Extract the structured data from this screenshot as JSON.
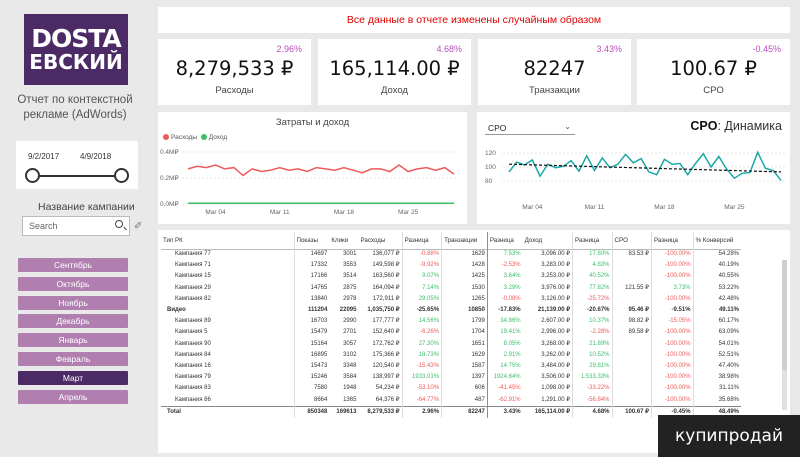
{
  "sidebar": {
    "logo_line1": "DOSTA",
    "logo_line2": "ЕВСКИЙ",
    "report_title": "Отчет по контекстной рекламе (AdWords)",
    "date_from": "9/2/2017",
    "date_to": "4/9/2018",
    "campaign_label": "Название кампании",
    "search_placeholder": "Search",
    "months": [
      "Сентябрь",
      "Октябрь",
      "Ноябрь",
      "Декабрь",
      "Январь",
      "Февраль",
      "Март",
      "Апрель"
    ],
    "selected_month": "Март"
  },
  "banner": "Все данные в отчете изменены случайным образом",
  "kpis": [
    {
      "pct": "2.96%",
      "value": "8,279,533 ₽",
      "label": "Расходы"
    },
    {
      "pct": "4.68%",
      "value": "165,114.00 ₽",
      "label": "Доход"
    },
    {
      "pct": "3.43%",
      "value": "82247",
      "label": "Транзакции"
    },
    {
      "pct": "-0.45%",
      "value": "100.67 ₽",
      "label": "CPO"
    }
  ],
  "chart_data": [
    {
      "type": "line",
      "title": "Затраты и доход",
      "legend": [
        "Расходы",
        "Доход"
      ],
      "colors": {
        "Расходы": "#ee5a5a",
        "Доход": "#3bbf6b"
      },
      "y_ticks": [
        "0.4M₽",
        "0.2M₽",
        "0.0M₽"
      ],
      "ylim": [
        0,
        0.4
      ],
      "x_ticks": [
        "Mar 04",
        "Mar 11",
        "Mar 18",
        "Mar 25"
      ],
      "series": [
        {
          "name": "Расходы",
          "values": [
            0.27,
            0.29,
            0.28,
            0.3,
            0.27,
            0.28,
            0.22,
            0.27,
            0.25,
            0.26,
            0.28,
            0.26,
            0.27,
            0.25,
            0.28,
            0.27,
            0.26,
            0.28,
            0.26,
            0.24,
            0.27,
            0.27,
            0.25,
            0.3,
            0.25,
            0.27,
            0.28,
            0.26,
            0.28,
            0.23
          ]
        },
        {
          "name": "Доход",
          "values": [
            0.006,
            0.006,
            0.006,
            0.006,
            0.006,
            0.006,
            0.006,
            0.006,
            0.006,
            0.006,
            0.006,
            0.006,
            0.006,
            0.006,
            0.006,
            0.006,
            0.006,
            0.006,
            0.006,
            0.006,
            0.006,
            0.006,
            0.006,
            0.006,
            0.006,
            0.006,
            0.006,
            0.006,
            0.006,
            0.006
          ]
        }
      ]
    },
    {
      "type": "line",
      "title": "CPO: Динамика",
      "dropdown": "CPO",
      "colors": {
        "CPO": "#1aa8a8",
        "trend": "#111111"
      },
      "y_ticks": [
        "120",
        "100",
        "80"
      ],
      "ylim": [
        70,
        130
      ],
      "x_ticks": [
        "Mar 04",
        "Mar 11",
        "Mar 18",
        "Mar 25"
      ],
      "series": [
        {
          "name": "CPO",
          "values": [
            93,
            107,
            103,
            110,
            87,
            104,
            99,
            101,
            109,
            94,
            116,
            95,
            113,
            99,
            104,
            118,
            106,
            112,
            93,
            89,
            111,
            104,
            105,
            89,
            105,
            119,
            100,
            115,
            97,
            84,
            91,
            92,
            121,
            98,
            95,
            81
          ]
        },
        {
          "name": "trend",
          "values": [
            104,
            93
          ]
        }
      ]
    }
  ],
  "table": {
    "columns": [
      "Тип РК",
      "Показы",
      "Клики",
      "Расходы",
      "Разница",
      "Транзакции",
      "Разница",
      "Доход",
      "Разница",
      "CPO",
      "Разница",
      "% Конверсий"
    ],
    "rows": [
      {
        "kind": "row",
        "cells": [
          "Кампания 77",
          "14697",
          "3001",
          "136,077 ₽",
          "-0.88%",
          "1629",
          "7.53%",
          "3,096.00 ₽",
          "17.80%",
          "83.53 ₽",
          "-100.00%",
          "54.28%"
        ]
      },
      {
        "kind": "row",
        "cells": [
          "Кампания 71",
          "17332",
          "3553",
          "149,598 ₽",
          "-9.92%",
          "1428",
          "-2.53%",
          "3,283.00 ₽",
          "4.83%",
          "",
          "-100.00%",
          "40.19%"
        ]
      },
      {
        "kind": "row",
        "cells": [
          "Кампания 15",
          "17166",
          "3514",
          "163,560 ₽",
          "9.07%",
          "1425",
          "3.64%",
          "3,253.00 ₽",
          "40.52%",
          "",
          "-100.00%",
          "40.55%"
        ]
      },
      {
        "kind": "row",
        "cells": [
          "Кампания 29",
          "14765",
          "2875",
          "164,094 ₽",
          "7.14%",
          "1530",
          "3.29%",
          "3,976.00 ₽",
          "77.82%",
          "121.55 ₽",
          "3.73%",
          "53.22%"
        ]
      },
      {
        "kind": "row",
        "cells": [
          "Кампания 82",
          "13840",
          "2978",
          "172,911 ₽",
          "29.05%",
          "1265",
          "-0.08%",
          "3,126.00 ₽",
          "-25.72%",
          "",
          "-100.00%",
          "42.48%"
        ]
      },
      {
        "kind": "grp",
        "cells": [
          "Видео",
          "111204",
          "22095",
          "1,035,750 ₽",
          "-25.65%",
          "10850",
          "-17.83%",
          "21,139.00 ₽",
          "-20.67%",
          "95.46 ₽",
          "-9.51%",
          "49.11%"
        ]
      },
      {
        "kind": "row",
        "cells": [
          "Кампания 89",
          "16703",
          "2990",
          "177,777 ₽",
          "14.56%",
          "1799",
          "34.86%",
          "2,607.00 ₽",
          "10.37%",
          "98.82 ₽",
          "-15.05%",
          "60.17%"
        ]
      },
      {
        "kind": "row",
        "cells": [
          "Кампания 5",
          "15479",
          "2701",
          "152,640 ₽",
          "-6.26%",
          "1704",
          "19.41%",
          "2,996.00 ₽",
          "-2.28%",
          "89.58 ₽",
          "-100.00%",
          "63.09%"
        ]
      },
      {
        "kind": "row",
        "cells": [
          "Кампания 90",
          "15164",
          "3057",
          "172,762 ₽",
          "27.30%",
          "1651",
          "8.05%",
          "3,268.00 ₽",
          "21.89%",
          "",
          "-100.00%",
          "54.01%"
        ]
      },
      {
        "kind": "row",
        "cells": [
          "Кампания 84",
          "16895",
          "3102",
          "175,366 ₽",
          "18.73%",
          "1629",
          "2.91%",
          "3,262.00 ₽",
          "10.52%",
          "",
          "-100.00%",
          "52.51%"
        ]
      },
      {
        "kind": "row",
        "cells": [
          "Кампания 16",
          "15473",
          "3348",
          "120,540 ₽",
          "-15.43%",
          "1587",
          "14.75%",
          "3,484.00 ₽",
          "29.81%",
          "",
          "-100.00%",
          "47.40%"
        ]
      },
      {
        "kind": "row",
        "cells": [
          "Кампания 79",
          "15246",
          "3584",
          "138,997 ₽",
          "1933.01%",
          "1397",
          "1924.64%",
          "3,506.00 ₽",
          "1,533.33%",
          "",
          "-100.00%",
          "38.98%"
        ]
      },
      {
        "kind": "row",
        "cells": [
          "Кампания 83",
          "7580",
          "1948",
          "54,234 ₽",
          "-53.10%",
          "606",
          "-41.45%",
          "1,098.00 ₽",
          "-33.22%",
          "",
          "-100.00%",
          "31.11%"
        ]
      },
      {
        "kind": "row",
        "cells": [
          "Кампания 86",
          "8664",
          "1365",
          "64,376 ₽",
          "-64.77%",
          "487",
          "-62.91%",
          "1,291.00 ₽",
          "-56.84%",
          "",
          "-100.00%",
          "35.68%"
        ]
      },
      {
        "kind": "tot",
        "cells": [
          "Total",
          "850348",
          "169613",
          "8,279,533 ₽",
          "2.96%",
          "82247",
          "3.43%",
          "165,114.00 ₽",
          "4.68%",
          "100.67 ₽",
          "-0.45%",
          "48.49%"
        ]
      }
    ]
  },
  "watermark": "купипродай"
}
